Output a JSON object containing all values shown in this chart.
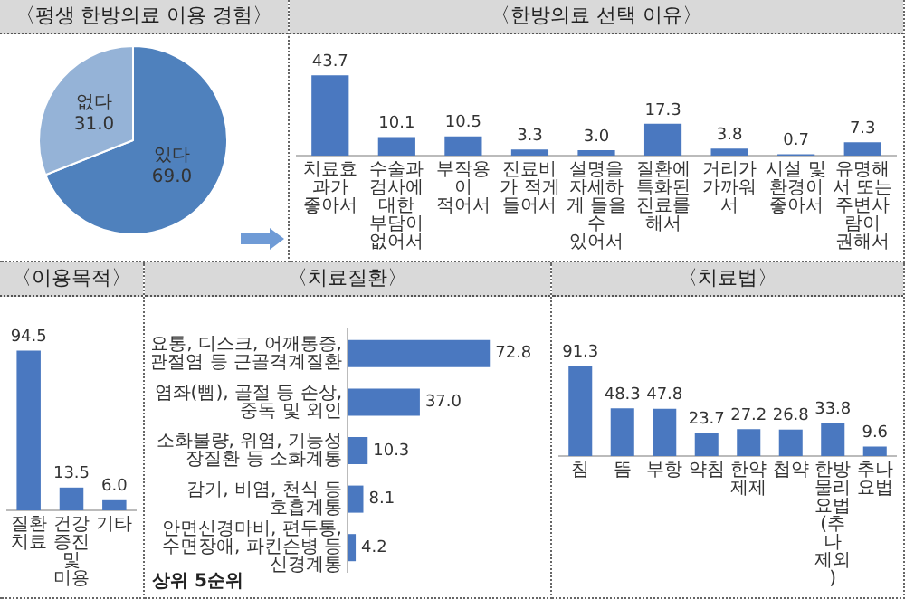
{
  "chart_data": [
    {
      "type": "pie",
      "title": "〈평생 한방의료 이용 경험〉",
      "categories": [
        "있다",
        "없다"
      ],
      "values": [
        69.0,
        31.0
      ],
      "value_labels": [
        "69.0",
        "31.0"
      ],
      "colors": [
        "#4f81bd",
        "#95b3d7"
      ]
    },
    {
      "type": "bar",
      "title": "〈한방의료 선택 이유〉",
      "categories": [
        "치료효과가 좋아서",
        "수술과 검사에 대한 부담이 없어서",
        "부작용이 적어서",
        "진료비가 적게 들어서",
        "설명을 자세하게 들을 수 있어서",
        "질환에 특화된 진료를 해서",
        "거리가 가까워서",
        "시설 및 환경이 좋아서",
        "유명해서 또는 주변사람이 권해서"
      ],
      "values": [
        43.7,
        10.1,
        10.5,
        3.3,
        3.0,
        17.3,
        3.8,
        0.7,
        7.3
      ],
      "value_labels": [
        "43.7",
        "10.1",
        "10.5",
        "3.3",
        "3.0",
        "17.3",
        "3.8",
        "0.7",
        "7.3"
      ],
      "color": "#4a78c0",
      "tick_labels": "x"
    },
    {
      "type": "bar",
      "title": "〈이용목적〉",
      "categories": [
        "질환치료",
        "건강증진 및 미용",
        "기타"
      ],
      "values": [
        94.5,
        13.5,
        6.0
      ],
      "value_labels": [
        "94.5",
        "13.5",
        "6.0"
      ],
      "color": "#4a78c0",
      "tick_labels": "x"
    },
    {
      "type": "bar",
      "title": "〈치료질환〉",
      "orientation": "horizontal",
      "categories": [
        "요통, 디스크, 어깨통증, 관절염 등 근골격계질환",
        "염좌(삠), 골절 등 손상, 중독 및 외인",
        "소화불량, 위염, 기능성 장질환 등 소화계통",
        "감기, 비염, 천식 등 호흡계통",
        "안면신경마비, 편두통, 수면장애, 파킨슨병 등 신경계통"
      ],
      "values": [
        72.8,
        37.0,
        10.3,
        8.1,
        4.2
      ],
      "value_labels": [
        "72.8",
        "37.0",
        "10.3",
        "8.1",
        "4.2"
      ],
      "color": "#4a78c0",
      "tick_labels": "y",
      "annotations": [
        "상위 5순위"
      ]
    },
    {
      "type": "bar",
      "title": "〈치료법〉",
      "categories": [
        "침",
        "뜸",
        "부항",
        "약침",
        "한약제제",
        "첩약",
        "한방물리요법(추나 제외)",
        "추나요법"
      ],
      "values": [
        91.3,
        48.3,
        47.8,
        23.7,
        27.2,
        26.8,
        33.8,
        9.6
      ],
      "value_labels": [
        "91.3",
        "48.3",
        "47.8",
        "23.7",
        "27.2",
        "26.8",
        "33.8",
        "9.6"
      ],
      "color": "#4a78c0",
      "tick_labels": "x"
    }
  ]
}
